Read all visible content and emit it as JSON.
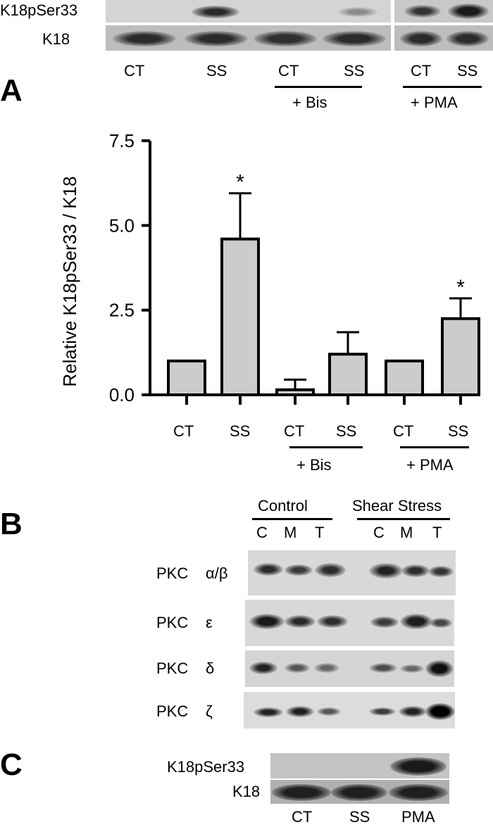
{
  "top_blot": {
    "row1_label": "K18pSer33",
    "row2_label": "K18",
    "lanes": [
      "CT",
      "SS",
      "CT",
      "SS",
      "CT",
      "SS"
    ],
    "group_bis": "+ Bis",
    "group_pma": "+ PMA"
  },
  "panel_a": {
    "letter": "A"
  },
  "chart_data": {
    "type": "bar",
    "categories": [
      "CT",
      "SS",
      "CT",
      "SS",
      "CT",
      "SS"
    ],
    "values": [
      1.0,
      4.6,
      0.15,
      1.2,
      1.0,
      2.25
    ],
    "errors": [
      0,
      1.35,
      0.3,
      0.65,
      0,
      0.6
    ],
    "significant": [
      false,
      true,
      false,
      false,
      false,
      true
    ],
    "sig_marker": "*",
    "group_labels": [
      "+ Bis",
      "+ PMA"
    ],
    "ylabel": "Relative K18pSer33 / K18",
    "yticks": [
      "0.0",
      "2.5",
      "5.0",
      "7.5"
    ],
    "ylim": [
      0,
      7.5
    ],
    "bar_color": "#cccccc"
  },
  "panel_b": {
    "letter": "B",
    "group_control": "Control",
    "group_shear": "Shear Stress",
    "fractions": [
      "C",
      "M",
      "T",
      "C",
      "M",
      "T"
    ],
    "rows": [
      {
        "prefix": "PKC",
        "isoform": "α/β"
      },
      {
        "prefix": "PKC",
        "isoform": "ε"
      },
      {
        "prefix": "PKC",
        "isoform": "δ"
      },
      {
        "prefix": "PKC",
        "isoform": "ζ"
      }
    ]
  },
  "panel_c": {
    "letter": "C",
    "row1_label": "K18pSer33",
    "row2_label": "K18",
    "lanes": [
      "CT",
      "SS",
      "PMA"
    ]
  }
}
